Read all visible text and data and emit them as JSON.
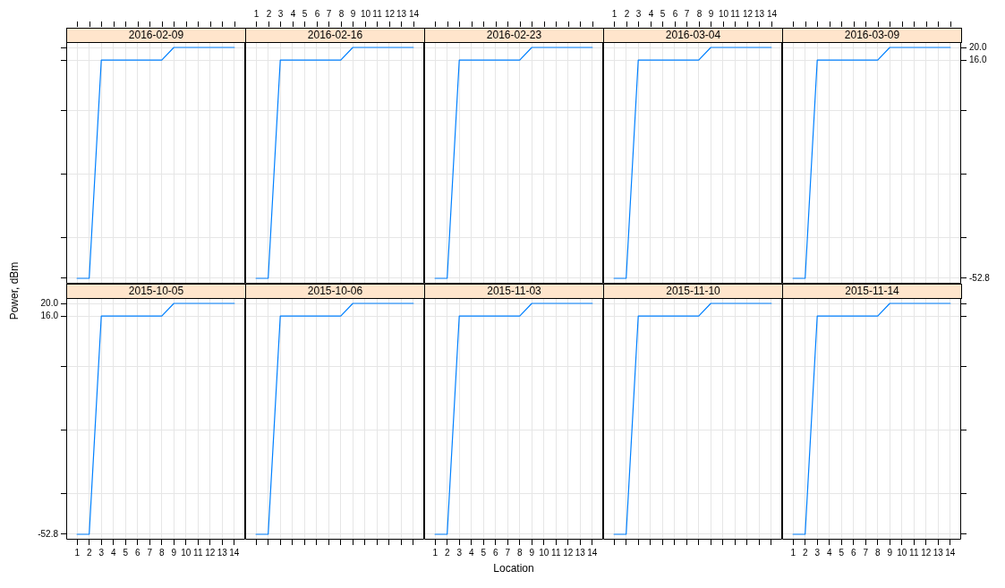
{
  "chart_data": [
    {
      "type": "line",
      "title": "2016-02-09",
      "x": [
        1,
        2,
        3,
        4,
        5,
        6,
        7,
        8,
        9,
        10,
        11,
        12,
        13,
        14
      ],
      "series": [
        {
          "color": "#0080ff",
          "values": [
            -52.8,
            -52.8,
            16,
            16,
            16,
            16,
            16,
            16,
            20,
            20,
            20,
            20,
            20,
            20
          ]
        }
      ],
      "xlim": [
        0.1,
        14.9
      ],
      "ylim": [
        -54.5,
        21.7
      ],
      "xticks": [
        {
          "value": 1,
          "label": null
        },
        {
          "value": 2,
          "label": null
        },
        {
          "value": 3,
          "label": null
        },
        {
          "value": 4,
          "label": null
        },
        {
          "value": 5,
          "label": null
        },
        {
          "value": 6,
          "label": null
        },
        {
          "value": 7,
          "label": null
        },
        {
          "value": 8,
          "label": null
        },
        {
          "value": 9,
          "label": null
        },
        {
          "value": 10,
          "label": null
        },
        {
          "value": 11,
          "label": null
        },
        {
          "value": 12,
          "label": null
        },
        {
          "value": 13,
          "label": null
        },
        {
          "value": 14,
          "label": null
        }
      ],
      "yticks": [
        {
          "value": 20,
          "label": null
        },
        {
          "value": 16,
          "label": null
        },
        {
          "value": 0,
          "label": null
        },
        {
          "value": -20,
          "label": null
        },
        {
          "value": -40,
          "label": null
        },
        {
          "value": -52.8,
          "label": null
        }
      ],
      "grid": true,
      "tick_labels": false
    },
    {
      "type": "line",
      "title": "2016-02-16",
      "x": [
        1,
        2,
        3,
        4,
        5,
        6,
        7,
        8,
        9,
        10,
        11,
        12,
        13,
        14
      ],
      "series": [
        {
          "color": "#0080ff",
          "values": [
            -52.8,
            -52.8,
            16,
            16,
            16,
            16,
            16,
            16,
            20,
            20,
            20,
            20,
            20,
            20
          ]
        }
      ],
      "xlim": [
        0.1,
        14.9
      ],
      "ylim": [
        -54.5,
        21.7
      ],
      "xticks": [
        1,
        2,
        3,
        4,
        5,
        6,
        7,
        8,
        9,
        10,
        11,
        12,
        13,
        14
      ],
      "yticks": [
        {
          "value": 20,
          "label": null
        },
        {
          "value": 16,
          "label": null
        },
        {
          "value": 0,
          "label": null
        },
        {
          "value": -20,
          "label": null
        },
        {
          "value": -40,
          "label": null
        },
        {
          "value": -52.8,
          "label": null
        }
      ],
      "grid": true,
      "tick_labels": "x"
    },
    {
      "type": "line",
      "title": "2016-02-23",
      "x": [
        1,
        2,
        3,
        4,
        5,
        6,
        7,
        8,
        9,
        10,
        11,
        12,
        13,
        14
      ],
      "series": [
        {
          "color": "#0080ff",
          "values": [
            -52.8,
            -52.8,
            16,
            16,
            16,
            16,
            16,
            16,
            20,
            20,
            20,
            20,
            20,
            20
          ]
        }
      ],
      "xlim": [
        0.1,
        14.9
      ],
      "ylim": [
        -54.5,
        21.7
      ],
      "xticks": [
        {
          "value": 1,
          "label": null
        },
        {
          "value": 2,
          "label": null
        },
        {
          "value": 3,
          "label": null
        },
        {
          "value": 4,
          "label": null
        },
        {
          "value": 5,
          "label": null
        },
        {
          "value": 6,
          "label": null
        },
        {
          "value": 7,
          "label": null
        },
        {
          "value": 8,
          "label": null
        },
        {
          "value": 9,
          "label": null
        },
        {
          "value": 10,
          "label": null
        },
        {
          "value": 11,
          "label": null
        },
        {
          "value": 12,
          "label": null
        },
        {
          "value": 13,
          "label": null
        },
        {
          "value": 14,
          "label": null
        }
      ],
      "yticks": [
        {
          "value": 20,
          "label": null
        },
        {
          "value": 16,
          "label": null
        },
        {
          "value": 0,
          "label": null
        },
        {
          "value": -20,
          "label": null
        },
        {
          "value": -40,
          "label": null
        },
        {
          "value": -52.8,
          "label": null
        }
      ],
      "grid": true,
      "tick_labels": false
    },
    {
      "type": "line",
      "title": "2016-03-04",
      "x": [
        1,
        2,
        3,
        4,
        5,
        6,
        7,
        8,
        9,
        10,
        11,
        12,
        13,
        14
      ],
      "series": [
        {
          "color": "#0080ff",
          "values": [
            -52.8,
            -52.8,
            16,
            16,
            16,
            16,
            16,
            16,
            20,
            20,
            20,
            20,
            20,
            20
          ]
        }
      ],
      "xlim": [
        0.1,
        14.9
      ],
      "ylim": [
        -54.5,
        21.7
      ],
      "xticks": [
        1,
        2,
        3,
        4,
        5,
        6,
        7,
        8,
        9,
        10,
        11,
        12,
        13,
        14
      ],
      "yticks": [
        {
          "value": 20,
          "label": null
        },
        {
          "value": 16,
          "label": null
        },
        {
          "value": 0,
          "label": null
        },
        {
          "value": -20,
          "label": null
        },
        {
          "value": -40,
          "label": null
        },
        {
          "value": -52.8,
          "label": null
        }
      ],
      "grid": true,
      "tick_labels": "x"
    },
    {
      "type": "line",
      "title": "2016-03-09",
      "x": [
        1,
        2,
        3,
        4,
        5,
        6,
        7,
        8,
        9,
        10,
        11,
        12,
        13,
        14
      ],
      "series": [
        {
          "color": "#0080ff",
          "values": [
            -52.8,
            -52.8,
            16,
            16,
            16,
            16,
            16,
            16,
            20,
            20,
            20,
            20,
            20,
            20
          ]
        }
      ],
      "xlim": [
        0.1,
        14.9
      ],
      "ylim": [
        -54.5,
        21.7
      ],
      "xticks": [
        {
          "value": 1,
          "label": null
        },
        {
          "value": 2,
          "label": null
        },
        {
          "value": 3,
          "label": null
        },
        {
          "value": 4,
          "label": null
        },
        {
          "value": 5,
          "label": null
        },
        {
          "value": 6,
          "label": null
        },
        {
          "value": 7,
          "label": null
        },
        {
          "value": 8,
          "label": null
        },
        {
          "value": 9,
          "label": null
        },
        {
          "value": 10,
          "label": null
        },
        {
          "value": 11,
          "label": null
        },
        {
          "value": 12,
          "label": null
        },
        {
          "value": 13,
          "label": null
        },
        {
          "value": 14,
          "label": null
        }
      ],
      "yticks": [
        {
          "value": 20,
          "label": "20.0"
        },
        {
          "value": 16,
          "label": "16.0"
        },
        {
          "value": 0,
          "label": null
        },
        {
          "value": -20,
          "label": null
        },
        {
          "value": -40,
          "label": null
        },
        -52.8
      ],
      "grid": true,
      "tick_labels": "y"
    },
    {
      "type": "line",
      "title": "2015-10-05",
      "ylabel": "Power, dBm",
      "x": [
        1,
        2,
        3,
        4,
        5,
        6,
        7,
        8,
        9,
        10,
        11,
        12,
        13,
        14
      ],
      "series": [
        {
          "color": "#0080ff",
          "values": [
            -52.8,
            -52.8,
            16,
            16,
            16,
            16,
            16,
            16,
            20,
            20,
            20,
            20,
            20,
            20
          ]
        }
      ],
      "xlim": [
        0.1,
        14.9
      ],
      "ylim": [
        -54.5,
        21.7
      ],
      "xticks": [
        1,
        2,
        3,
        4,
        5,
        6,
        7,
        8,
        9,
        10,
        11,
        12,
        13,
        14
      ],
      "yticks": [
        {
          "value": 20,
          "label": "20.0"
        },
        {
          "value": 16,
          "label": "16.0"
        },
        {
          "value": 0,
          "label": null
        },
        {
          "value": -20,
          "label": null
        },
        {
          "value": -40,
          "label": null
        },
        -52.8
      ],
      "grid": true
    },
    {
      "type": "line",
      "title": "2015-10-06",
      "x": [
        1,
        2,
        3,
        4,
        5,
        6,
        7,
        8,
        9,
        10,
        11,
        12,
        13,
        14
      ],
      "series": [
        {
          "color": "#0080ff",
          "values": [
            -52.8,
            -52.8,
            16,
            16,
            16,
            16,
            16,
            16,
            20,
            20,
            20,
            20,
            20,
            20
          ]
        }
      ],
      "xlim": [
        0.1,
        14.9
      ],
      "ylim": [
        -54.5,
        21.7
      ],
      "xticks": [
        {
          "value": 1,
          "label": null
        },
        {
          "value": 2,
          "label": null
        },
        {
          "value": 3,
          "label": null
        },
        {
          "value": 4,
          "label": null
        },
        {
          "value": 5,
          "label": null
        },
        {
          "value": 6,
          "label": null
        },
        {
          "value": 7,
          "label": null
        },
        {
          "value": 8,
          "label": null
        },
        {
          "value": 9,
          "label": null
        },
        {
          "value": 10,
          "label": null
        },
        {
          "value": 11,
          "label": null
        },
        {
          "value": 12,
          "label": null
        },
        {
          "value": 13,
          "label": null
        },
        {
          "value": 14,
          "label": null
        }
      ],
      "yticks": [
        {
          "value": 20,
          "label": null
        },
        {
          "value": 16,
          "label": null
        },
        {
          "value": 0,
          "label": null
        },
        {
          "value": -20,
          "label": null
        },
        {
          "value": -40,
          "label": null
        },
        {
          "value": -52.8,
          "label": null
        }
      ],
      "grid": true,
      "tick_labels": false
    },
    {
      "type": "line",
      "title": "2015-11-03",
      "xlabel": "Location",
      "x": [
        1,
        2,
        3,
        4,
        5,
        6,
        7,
        8,
        9,
        10,
        11,
        12,
        13,
        14
      ],
      "series": [
        {
          "color": "#0080ff",
          "values": [
            -52.8,
            -52.8,
            16,
            16,
            16,
            16,
            16,
            16,
            20,
            20,
            20,
            20,
            20,
            20
          ]
        }
      ],
      "xlim": [
        0.1,
        14.9
      ],
      "ylim": [
        -54.5,
        21.7
      ],
      "xticks": [
        1,
        2,
        3,
        4,
        5,
        6,
        7,
        8,
        9,
        10,
        11,
        12,
        13,
        14
      ],
      "yticks": [
        {
          "value": 20,
          "label": null
        },
        {
          "value": 16,
          "label": null
        },
        {
          "value": 0,
          "label": null
        },
        {
          "value": -20,
          "label": null
        },
        {
          "value": -40,
          "label": null
        },
        {
          "value": -52.8,
          "label": null
        }
      ],
      "grid": true,
      "tick_labels": "x"
    },
    {
      "type": "line",
      "title": "2015-11-10",
      "x": [
        1,
        2,
        3,
        4,
        5,
        6,
        7,
        8,
        9,
        10,
        11,
        12,
        13,
        14
      ],
      "series": [
        {
          "color": "#0080ff",
          "values": [
            -52.8,
            -52.8,
            16,
            16,
            16,
            16,
            16,
            16,
            20,
            20,
            20,
            20,
            20,
            20
          ]
        }
      ],
      "xlim": [
        0.1,
        14.9
      ],
      "ylim": [
        -54.5,
        21.7
      ],
      "xticks": [
        {
          "value": 1,
          "label": null
        },
        {
          "value": 2,
          "label": null
        },
        {
          "value": 3,
          "label": null
        },
        {
          "value": 4,
          "label": null
        },
        {
          "value": 5,
          "label": null
        },
        {
          "value": 6,
          "label": null
        },
        {
          "value": 7,
          "label": null
        },
        {
          "value": 8,
          "label": null
        },
        {
          "value": 9,
          "label": null
        },
        {
          "value": 10,
          "label": null
        },
        {
          "value": 11,
          "label": null
        },
        {
          "value": 12,
          "label": null
        },
        {
          "value": 13,
          "label": null
        },
        {
          "value": 14,
          "label": null
        }
      ],
      "yticks": [
        {
          "value": 20,
          "label": null
        },
        {
          "value": 16,
          "label": null
        },
        {
          "value": 0,
          "label": null
        },
        {
          "value": -20,
          "label": null
        },
        {
          "value": -40,
          "label": null
        },
        {
          "value": -52.8,
          "label": null
        }
      ],
      "grid": true,
      "tick_labels": false
    },
    {
      "type": "line",
      "title": "2015-11-14",
      "x": [
        1,
        2,
        3,
        4,
        5,
        6,
        7,
        8,
        9,
        10,
        11,
        12,
        13,
        14
      ],
      "series": [
        {
          "color": "#0080ff",
          "values": [
            -52.8,
            -52.8,
            16,
            16,
            16,
            16,
            16,
            16,
            20,
            20,
            20,
            20,
            20,
            20
          ]
        }
      ],
      "xlim": [
        0.1,
        14.9
      ],
      "ylim": [
        -54.5,
        21.7
      ],
      "xticks": [
        1,
        2,
        3,
        4,
        5,
        6,
        7,
        8,
        9,
        10,
        11,
        12,
        13,
        14
      ],
      "yticks": [
        {
          "value": 20,
          "label": null
        },
        {
          "value": 16,
          "label": null
        },
        {
          "value": 0,
          "label": null
        },
        {
          "value": -20,
          "label": null
        },
        {
          "value": -40,
          "label": null
        },
        {
          "value": -52.8,
          "label": null
        }
      ],
      "grid": true,
      "tick_labels": "x"
    }
  ]
}
